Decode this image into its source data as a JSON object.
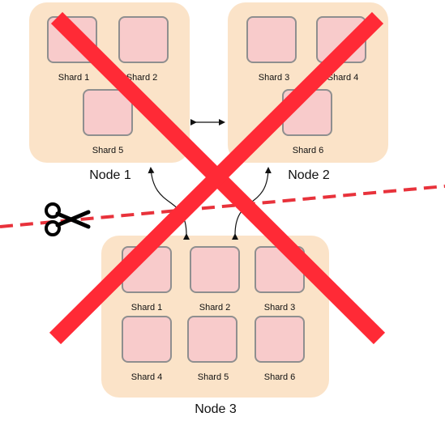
{
  "nodes": [
    {
      "label": "Node 1",
      "shards": [
        "Shard 1",
        "Shard 2",
        "Shard 5"
      ]
    },
    {
      "label": "Node 2",
      "shards": [
        "Shard 3",
        "Shard 4",
        "Shard 6"
      ]
    },
    {
      "label": "Node 3",
      "shards": [
        "Shard 1",
        "Shard 2",
        "Shard 3",
        "Shard 4",
        "Shard 5",
        "Shard 6"
      ]
    }
  ],
  "colors": {
    "node_fill": "#fbe3c8",
    "shard_fill": "#f8cbcb",
    "shard_border": "#8f8f8f",
    "cross": "#ff2a36",
    "partition_line": "#e8323b"
  },
  "icons": [
    "scissors-icon"
  ]
}
